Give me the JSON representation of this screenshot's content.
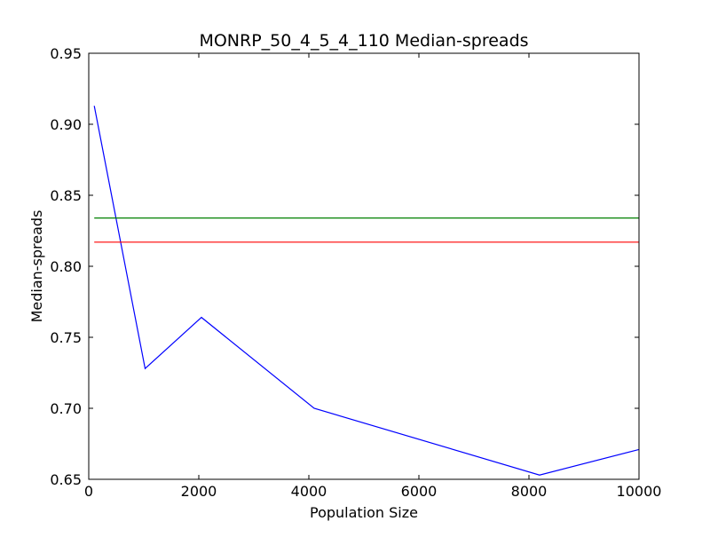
{
  "chart_data": {
    "type": "line",
    "title": "MONRP_50_4_5_4_110 Median-spreads",
    "xlabel": "Population Size",
    "ylabel": "Median-spreads",
    "xlim": [
      0,
      10000
    ],
    "ylim": [
      0.65,
      0.95
    ],
    "x_ticks": [
      0,
      2000,
      4000,
      6000,
      8000,
      10000
    ],
    "x_tick_labels": [
      "0",
      "2000",
      "4000",
      "6000",
      "8000",
      "10000"
    ],
    "y_ticks": [
      0.65,
      0.7,
      0.75,
      0.8,
      0.85,
      0.9,
      0.95
    ],
    "y_tick_labels": [
      "0.65",
      "0.70",
      "0.75",
      "0.80",
      "0.85",
      "0.90",
      "0.95"
    ],
    "grid": false,
    "legend": "none",
    "series": [
      {
        "color": "#0000ff",
        "x": [
          100,
          1024,
          2048,
          4096,
          8192,
          10000
        ],
        "y": [
          0.913,
          0.728,
          0.764,
          0.7,
          0.653,
          0.671
        ]
      },
      {
        "color": "#008000",
        "x": [
          100,
          10000
        ],
        "y": [
          0.834,
          0.834
        ]
      },
      {
        "color": "#ff0000",
        "x": [
          100,
          10000
        ],
        "y": [
          0.817,
          0.817
        ]
      }
    ]
  }
}
